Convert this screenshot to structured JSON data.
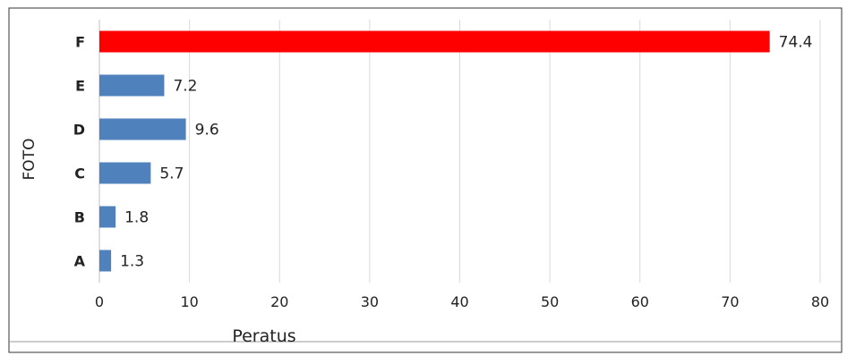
{
  "chart_data": {
    "type": "bar",
    "orientation": "horizontal",
    "categories": [
      "A",
      "B",
      "C",
      "D",
      "E",
      "F"
    ],
    "values": [
      1.3,
      1.8,
      5.7,
      9.6,
      7.2,
      74.4
    ],
    "value_labels": [
      "1.3",
      "1.8",
      "5.7",
      "9.6",
      "7.2",
      "74.4"
    ],
    "highlight_category": "F",
    "xlabel": "Peratus",
    "ylabel": "FOTO",
    "xlim": [
      0,
      80
    ],
    "xticks": [
      "0",
      "10",
      "20",
      "30",
      "40",
      "50",
      "60",
      "70",
      "80"
    ],
    "grid": "vertical",
    "legend": "none",
    "colors": {
      "bar": "#4f81bd",
      "highlight": "#ff0000",
      "grid": "#d9d9d9",
      "text": "#222222"
    }
  }
}
